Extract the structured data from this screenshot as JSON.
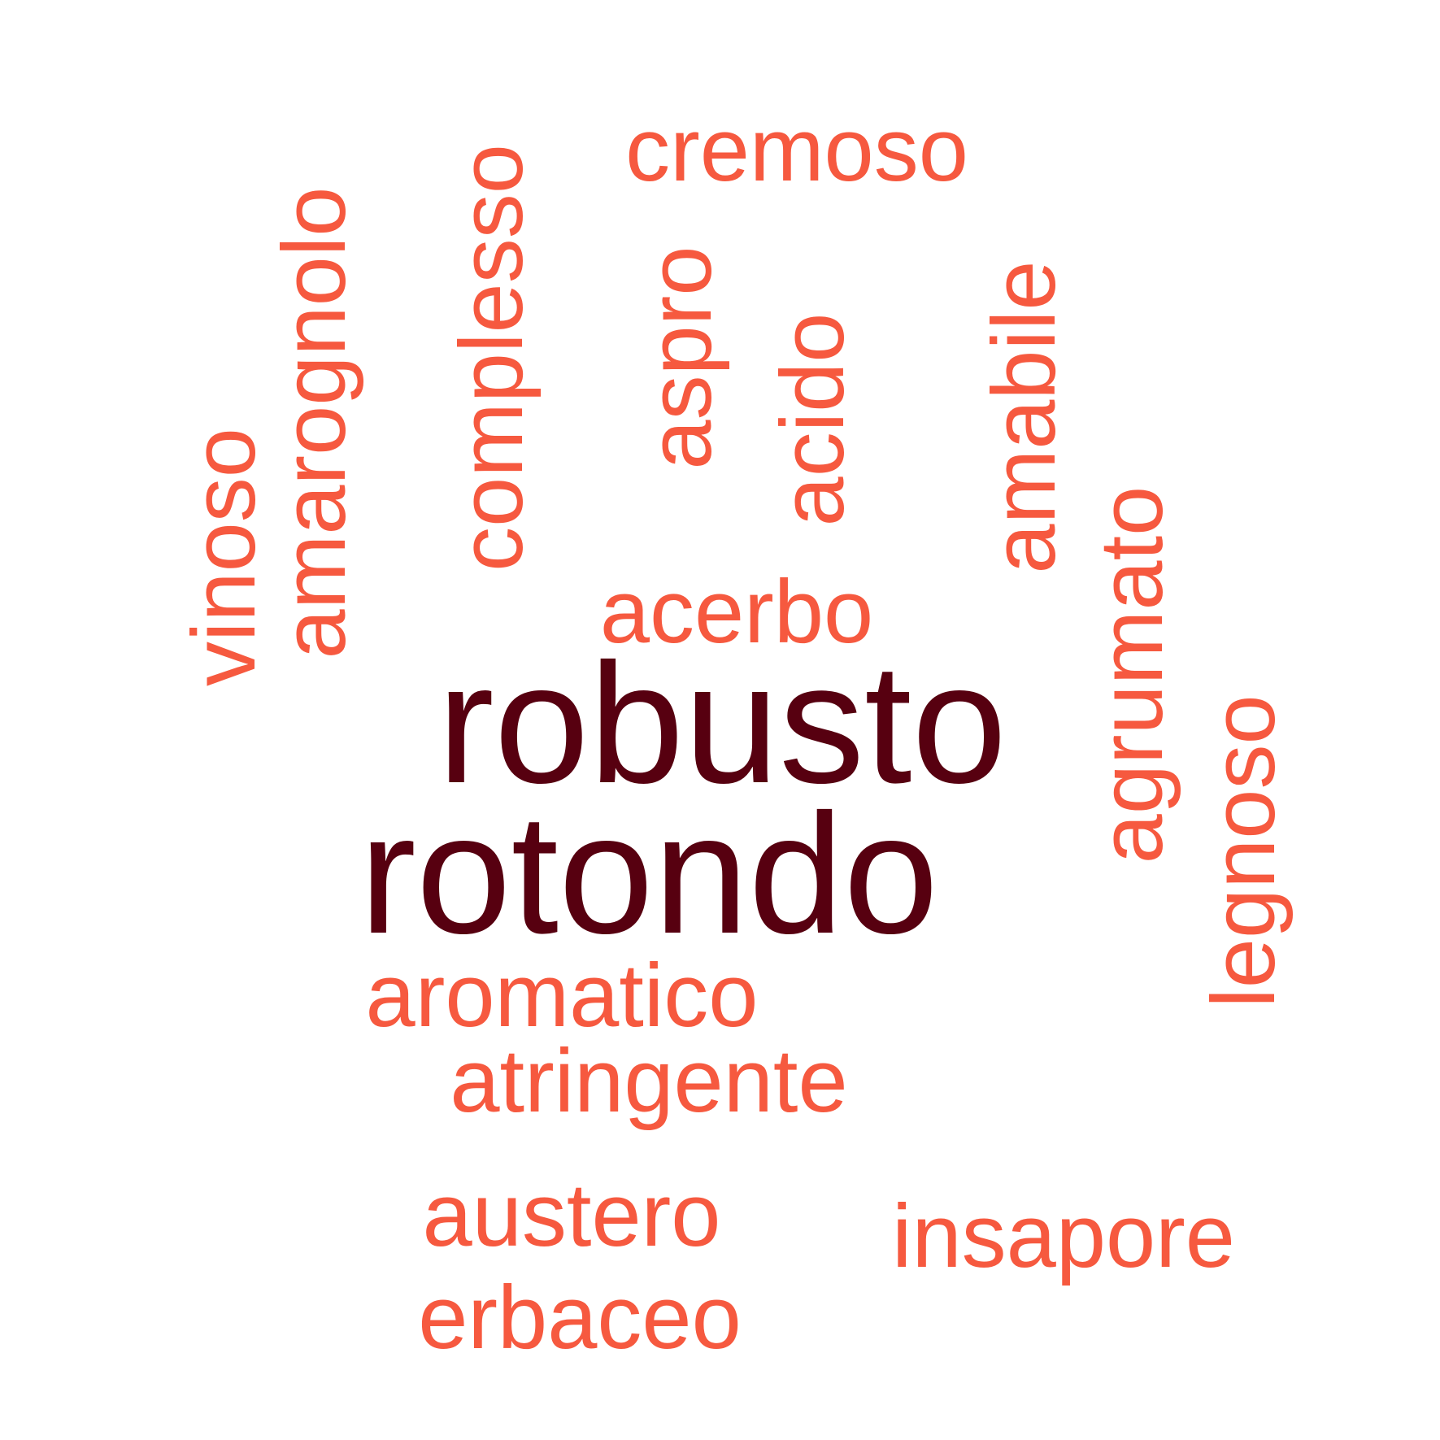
{
  "colors": {
    "dominant": "#570010",
    "regular": "#f6593f",
    "background": "#ffffff"
  },
  "words": {
    "robusto": "robusto",
    "rotondo": "rotondo",
    "cremoso": "cremoso",
    "acerbo": "acerbo",
    "aromatico": "aromatico",
    "atringente": "atringente",
    "austero": "austero",
    "insapore": "insapore",
    "erbaceo": "erbaceo",
    "vinoso": "vinoso",
    "amarognolo": "amarognolo",
    "complesso": "complesso",
    "aspro": "aspro",
    "acido": "acido",
    "amabile": "amabile",
    "agrumato": "agrumato",
    "legnoso": "legnoso"
  }
}
